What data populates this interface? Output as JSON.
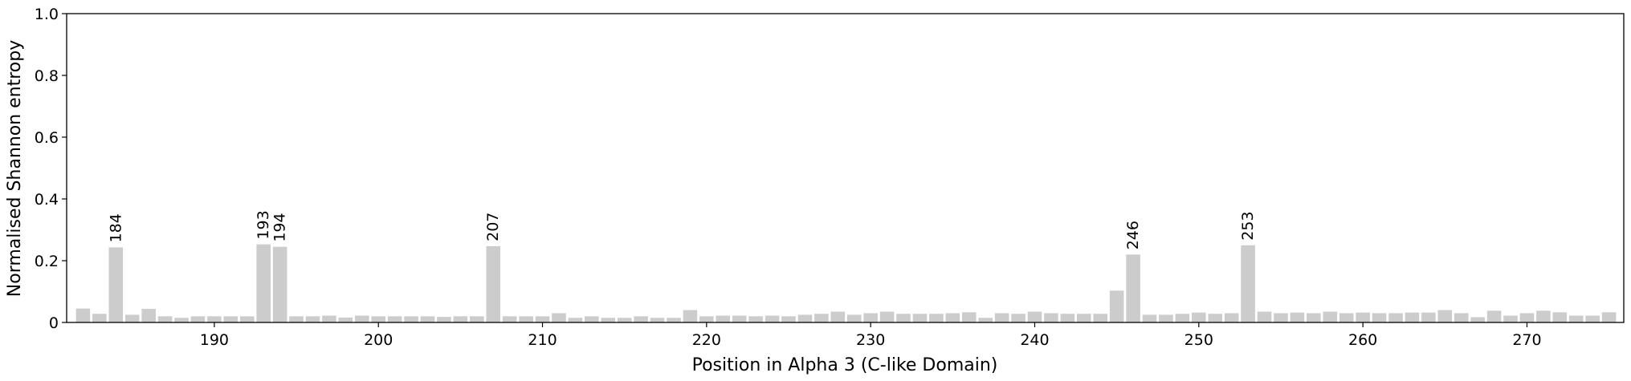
{
  "chart_data": {
    "type": "bar",
    "xlabel": "Position in Alpha 3 (C-like Domain)",
    "ylabel": "Normalised Shannon entropy",
    "xlim": [
      181,
      275.9
    ],
    "ylim": [
      0,
      1.0
    ],
    "xticks": [
      190,
      200,
      210,
      220,
      230,
      240,
      250,
      260,
      270
    ],
    "yticks": [
      0.0,
      0.2,
      0.4,
      0.6,
      0.8,
      1.0
    ],
    "ytick_labels": [
      "0",
      "0.2",
      "0.4",
      "0.6",
      "0.8",
      "1.0"
    ],
    "bar_color": "#cccccc",
    "grid": false,
    "x": [
      182,
      183,
      184,
      185,
      186,
      187,
      188,
      189,
      190,
      191,
      192,
      193,
      194,
      195,
      196,
      197,
      198,
      199,
      200,
      201,
      202,
      203,
      204,
      205,
      206,
      207,
      208,
      209,
      210,
      211,
      212,
      213,
      214,
      215,
      216,
      217,
      218,
      219,
      220,
      221,
      222,
      223,
      224,
      225,
      226,
      227,
      228,
      229,
      230,
      231,
      232,
      233,
      234,
      235,
      236,
      237,
      238,
      239,
      240,
      241,
      242,
      243,
      244,
      245,
      246,
      247,
      248,
      249,
      250,
      251,
      252,
      253,
      254,
      255,
      256,
      257,
      258,
      259,
      260,
      261,
      262,
      263,
      264,
      265,
      266,
      267,
      268,
      269,
      270,
      271,
      272,
      273,
      274,
      275
    ],
    "values": [
      0.045,
      0.028,
      0.243,
      0.025,
      0.044,
      0.02,
      0.015,
      0.02,
      0.02,
      0.02,
      0.02,
      0.253,
      0.245,
      0.02,
      0.02,
      0.022,
      0.016,
      0.022,
      0.02,
      0.02,
      0.02,
      0.02,
      0.018,
      0.02,
      0.02,
      0.247,
      0.02,
      0.02,
      0.02,
      0.03,
      0.015,
      0.02,
      0.015,
      0.015,
      0.02,
      0.015,
      0.015,
      0.04,
      0.02,
      0.022,
      0.022,
      0.02,
      0.022,
      0.02,
      0.025,
      0.028,
      0.035,
      0.025,
      0.03,
      0.035,
      0.028,
      0.028,
      0.028,
      0.03,
      0.033,
      0.015,
      0.03,
      0.028,
      0.035,
      0.03,
      0.028,
      0.028,
      0.028,
      0.103,
      0.22,
      0.025,
      0.025,
      0.028,
      0.032,
      0.028,
      0.03,
      0.25,
      0.035,
      0.03,
      0.032,
      0.03,
      0.035,
      0.03,
      0.032,
      0.03,
      0.03,
      0.032,
      0.032,
      0.04,
      0.03,
      0.017,
      0.038,
      0.022,
      0.03,
      0.038,
      0.033,
      0.022,
      0.022,
      0.033
    ],
    "annotations": [
      {
        "x": 184,
        "text": "184"
      },
      {
        "x": 193,
        "text": "193"
      },
      {
        "x": 194,
        "text": "194"
      },
      {
        "x": 207,
        "text": "207"
      },
      {
        "x": 246,
        "text": "246"
      },
      {
        "x": 253,
        "text": "253"
      }
    ]
  }
}
